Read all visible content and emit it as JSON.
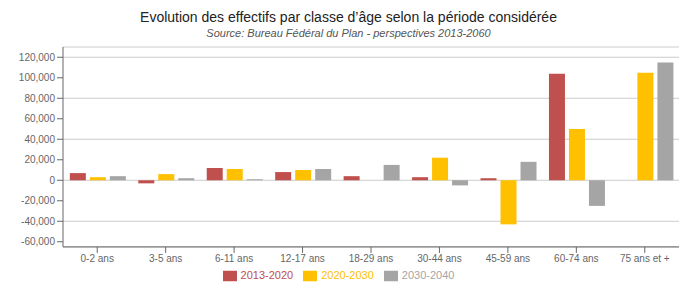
{
  "chart_data": {
    "type": "bar",
    "title": "Evolution des effectifs par classe d’âge selon la période considérée",
    "subtitle": "Source: Bureau Fédéral du Plan - perspectives 2013-2060",
    "categories": [
      "0-2 ans",
      "3-5 ans",
      "6-11 ans",
      "12-17 ans",
      "18-29 ans",
      "30-44 ans",
      "45-59 ans",
      "60-74 ans",
      "75 ans et +"
    ],
    "series": [
      {
        "name": "2013-2020",
        "color": "#C0504D",
        "values": [
          7000,
          -3000,
          12000,
          8000,
          4000,
          3000,
          2000,
          104000,
          0
        ]
      },
      {
        "name": "2020-2030",
        "color": "#FFC000",
        "values": [
          3000,
          6000,
          11000,
          10000,
          0,
          22000,
          -43000,
          50000,
          105000
        ]
      },
      {
        "name": "2030-2040",
        "color": "#A5A5A5",
        "values": [
          4000,
          2000,
          1000,
          11000,
          15000,
          -5000,
          18000,
          -25000,
          115000
        ]
      }
    ],
    "ylim": [
      -65000,
      130000
    ],
    "yticks": [
      {
        "value": -60000,
        "label": "-60,000"
      },
      {
        "value": -40000,
        "label": "-40,000"
      },
      {
        "value": -20000,
        "label": "-20,000"
      },
      0,
      {
        "value": 20000,
        "label": "20,000"
      },
      {
        "value": 40000,
        "label": "40,000"
      },
      {
        "value": 60000,
        "label": "60,000"
      },
      {
        "value": 80000,
        "label": "80,000"
      },
      {
        "value": 100000,
        "label": "100,000"
      },
      {
        "value": 120000,
        "label": "120,000"
      }
    ],
    "grid": true,
    "legend": "bottom"
  }
}
